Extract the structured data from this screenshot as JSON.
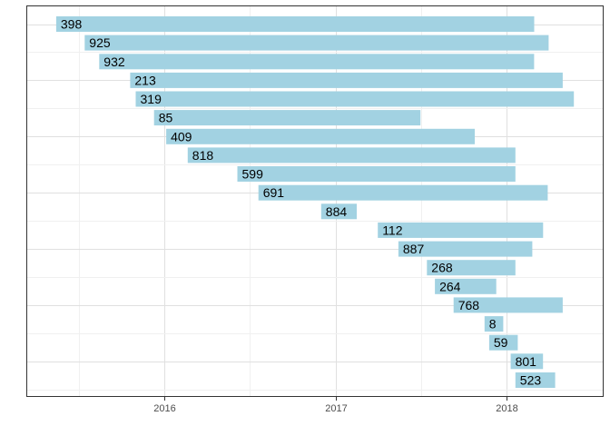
{
  "chart_data": {
    "type": "bar",
    "orientation": "horizontal-timeline",
    "title": "",
    "xlabel": "",
    "ylabel": "",
    "x_axis": {
      "ticks": [
        "2016",
        "2017",
        "2018"
      ],
      "tick_values": [
        "2016-01-01",
        "2017-01-01",
        "2018-01-01"
      ],
      "range": [
        "2015-02-20",
        "2018-07-15"
      ]
    },
    "grid": true,
    "legend": "none",
    "colors": {
      "bar": "#a2d2e2",
      "grid_major": "#e0e0e0",
      "grid_minor": "#f0f0f0",
      "panel_border": "#333333",
      "tick_text": "#4d4d4d"
    },
    "bars": [
      {
        "label": "398",
        "start": "2015-05-15",
        "end": "2018-03-01"
      },
      {
        "label": "925",
        "start": "2015-07-15",
        "end": "2018-04-01"
      },
      {
        "label": "932",
        "start": "2015-08-15",
        "end": "2018-03-01"
      },
      {
        "label": "213",
        "start": "2015-10-20",
        "end": "2018-05-01"
      },
      {
        "label": "319",
        "start": "2015-11-01",
        "end": "2018-05-25"
      },
      {
        "label": "85",
        "start": "2015-12-10",
        "end": "2017-07-01"
      },
      {
        "label": "409",
        "start": "2016-01-05",
        "end": "2017-10-25"
      },
      {
        "label": "818",
        "start": "2016-02-20",
        "end": "2018-01-20"
      },
      {
        "label": "599",
        "start": "2016-06-05",
        "end": "2018-01-20"
      },
      {
        "label": "691",
        "start": "2016-07-20",
        "end": "2018-03-30"
      },
      {
        "label": "884",
        "start": "2016-12-01",
        "end": "2017-02-15"
      },
      {
        "label": "112",
        "start": "2017-04-01",
        "end": "2018-03-20"
      },
      {
        "label": "887",
        "start": "2017-05-15",
        "end": "2018-02-25"
      },
      {
        "label": "268",
        "start": "2017-07-15",
        "end": "2018-01-20"
      },
      {
        "label": "264",
        "start": "2017-08-01",
        "end": "2017-12-10"
      },
      {
        "label": "768",
        "start": "2017-09-10",
        "end": "2018-05-01"
      },
      {
        "label": "8",
        "start": "2017-11-15",
        "end": "2017-12-25"
      },
      {
        "label": "59",
        "start": "2017-11-25",
        "end": "2018-01-25"
      },
      {
        "label": "801",
        "start": "2018-01-10",
        "end": "2018-03-20"
      },
      {
        "label": "523",
        "start": "2018-01-20",
        "end": "2018-04-15"
      }
    ]
  }
}
